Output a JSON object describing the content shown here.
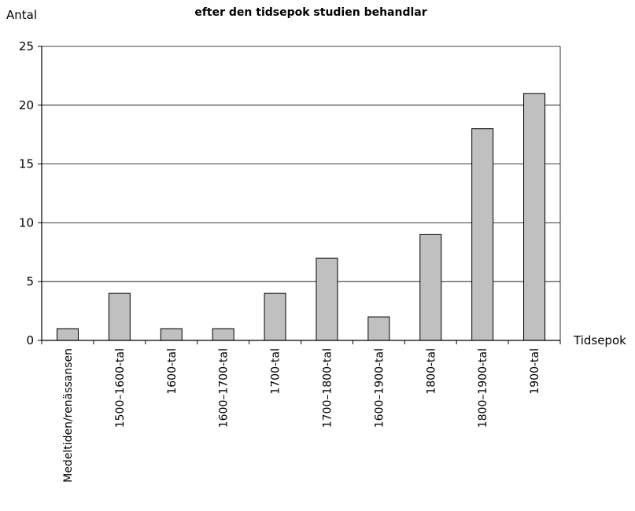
{
  "chart_data": {
    "type": "bar",
    "title": "efter den tidsepok studien behandlar",
    "xlabel": "Tidsepok",
    "ylabel": "Antal",
    "ylim": [
      0,
      25
    ],
    "yticks": [
      "0",
      "5",
      "10",
      "15",
      "20",
      "25"
    ],
    "grid": true,
    "categories": [
      "Medeltiden/renässansen",
      "1500–1600-tal",
      "1600-tal",
      "1600–1700-tal",
      "1700-tal",
      "1700–1800-tal",
      "1600–1900-tal",
      "1800-tal",
      "1800–1900-tal",
      "1900-tal"
    ],
    "values": [
      1,
      4,
      1,
      1,
      4,
      7,
      2,
      9,
      18,
      21
    ],
    "bar_color": "#c0c0c0",
    "bar_stroke": "#000000",
    "grid_color": "#000000"
  }
}
